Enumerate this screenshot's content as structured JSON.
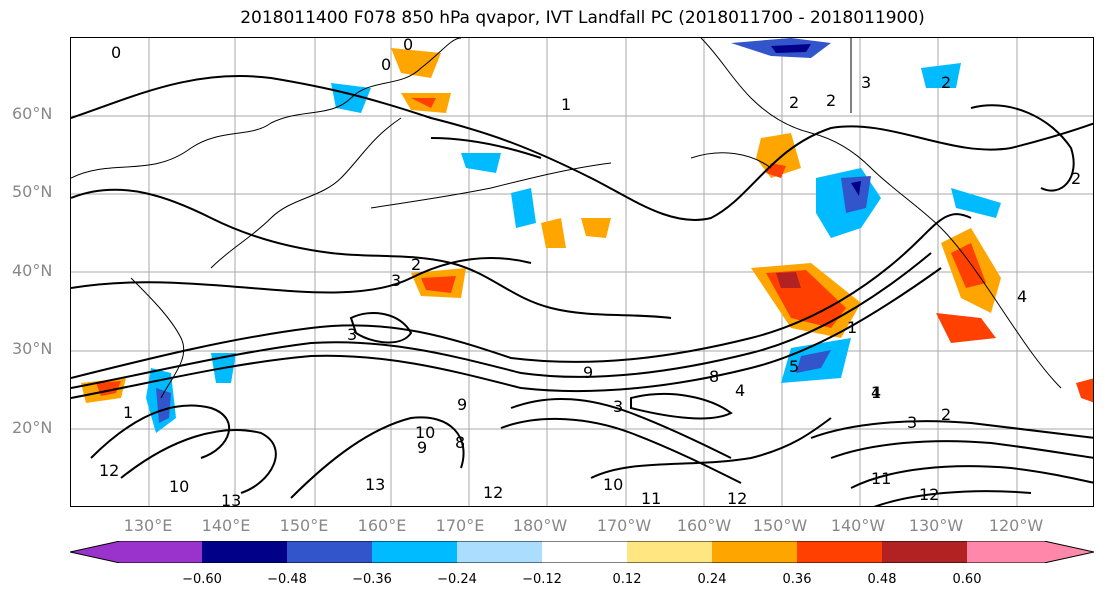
{
  "title": "2018011400 F078 850 hPa qvapor, IVT Landfall PC (2018011700 - 2018011900)",
  "lat_labels": [
    "60°N",
    "50°N",
    "40°N",
    "30°N",
    "20°N"
  ],
  "lon_labels": [
    "130°E",
    "140°E",
    "150°E",
    "160°E",
    "170°E",
    "180°W",
    "170°W",
    "160°W",
    "150°W",
    "140°W",
    "130°W",
    "120°W"
  ],
  "contour_labels": [
    "0",
    "0",
    "0",
    "1",
    "1",
    "2",
    "2",
    "3",
    "3",
    "2",
    "3",
    "2",
    "9",
    "8",
    "4",
    "5",
    "3",
    "9",
    "10",
    "9",
    "8",
    "13",
    "12",
    "10",
    "11",
    "12",
    "11",
    "12",
    "13",
    "10",
    "12",
    "2",
    "3",
    "4",
    "1",
    "2",
    "4",
    "1"
  ],
  "colorbar": {
    "ticks": [
      "−0.60",
      "−0.48",
      "−0.36",
      "−0.24",
      "−0.12",
      "0.12",
      "0.24",
      "0.36",
      "0.48",
      "0.60"
    ],
    "colors": [
      "#9933cc",
      "#000088",
      "#3355cc",
      "#00bbff",
      "#aaddff",
      "#ffffff",
      "#ffe680",
      "#ffa500",
      "#ff4000",
      "#b22222",
      "#ff88aa"
    ]
  }
}
